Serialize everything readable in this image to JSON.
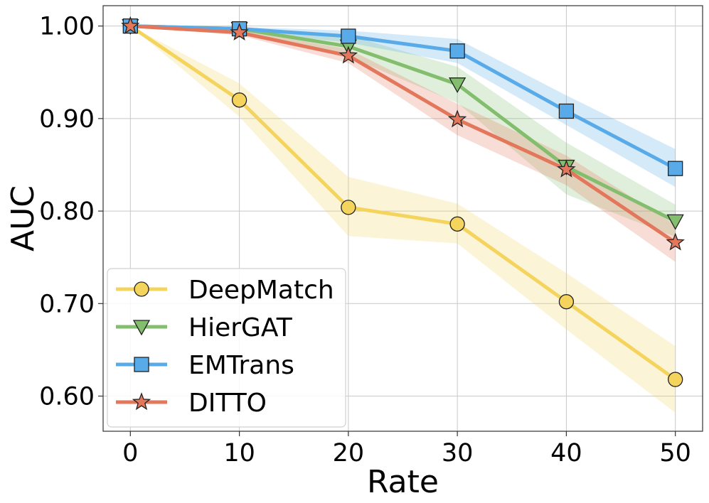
{
  "chart_data": {
    "type": "line",
    "title": "",
    "xlabel": "Rate",
    "ylabel": "AUC",
    "x": [
      0,
      10,
      20,
      30,
      40,
      50
    ],
    "xticks": [
      "0",
      "10",
      "20",
      "30",
      "40",
      "50"
    ],
    "yticks": [
      "0.60",
      "0.70",
      "0.80",
      "0.90",
      "1.00"
    ],
    "ytick_values": [
      0.6,
      0.7,
      0.8,
      0.9,
      1.0
    ],
    "xlim": [
      -2.5,
      52.5
    ],
    "ylim": [
      0.562,
      1.022
    ],
    "grid": true,
    "legend_position": "lower-left",
    "series": [
      {
        "name": "DeepMatch",
        "color": "#F5D45E",
        "marker": "circle",
        "values": [
          1.0,
          0.92,
          0.804,
          0.786,
          0.702,
          0.618
        ],
        "band_low": [
          1.0,
          0.902,
          0.773,
          0.765,
          0.672,
          0.582
        ],
        "band_high": [
          1.0,
          0.938,
          0.837,
          0.808,
          0.733,
          0.654
        ]
      },
      {
        "name": "HierGAT",
        "color": "#82BE6E",
        "marker": "triangle-down",
        "values": [
          1.0,
          0.997,
          0.978,
          0.937,
          0.848,
          0.789
        ],
        "band_low": [
          1.0,
          0.994,
          0.967,
          0.917,
          0.818,
          0.772
        ],
        "band_high": [
          1.0,
          0.999,
          0.99,
          0.956,
          0.874,
          0.807
        ]
      },
      {
        "name": "EMTrans",
        "color": "#58ABE8",
        "marker": "square",
        "values": [
          1.0,
          0.997,
          0.989,
          0.973,
          0.908,
          0.846
        ],
        "band_low": [
          1.0,
          0.995,
          0.982,
          0.96,
          0.893,
          0.826
        ],
        "band_high": [
          1.0,
          0.999,
          0.995,
          0.986,
          0.925,
          0.867
        ]
      },
      {
        "name": "DITTO",
        "color": "#E2775C",
        "marker": "star",
        "values": [
          1.0,
          0.993,
          0.968,
          0.899,
          0.845,
          0.766
        ],
        "band_low": [
          1.0,
          0.99,
          0.96,
          0.882,
          0.828,
          0.745
        ],
        "band_high": [
          1.0,
          0.996,
          0.975,
          0.916,
          0.86,
          0.785
        ]
      }
    ]
  }
}
